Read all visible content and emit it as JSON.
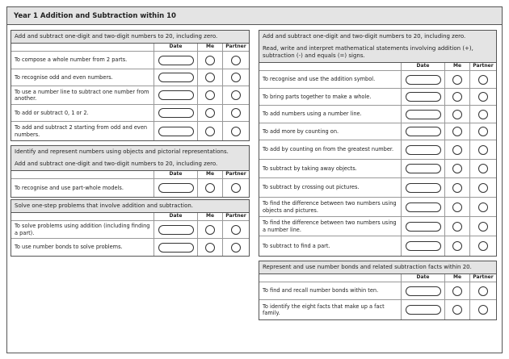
{
  "title": "Year 1 Addition and Subtraction within 10",
  "columns": {
    "date": "Date",
    "me": "Me",
    "partner": "Partner"
  },
  "sections": [
    {
      "headings": [
        "Add and subtract one-digit and two-digit numbers to 20, including zero."
      ],
      "rows": [
        "To compose a whole number from 2 parts.",
        "To recognise odd and even numbers.",
        "To use a number line to subtract one number from another.",
        "To add or subtract 0, 1 or 2.",
        "To add and subtract 2 starting from odd and even numbers."
      ]
    },
    {
      "headings": [
        "Identify and represent numbers using objects and pictorial representations.",
        "Add and subtract one-digit and two-digit numbers to 20, including zero."
      ],
      "rows": [
        "To recognise and use part-whole models."
      ]
    },
    {
      "headings": [
        "Solve one-step problems that involve addition and subtraction."
      ],
      "rows": [
        "To solve problems using addition (including finding a part).",
        "To use number bonds to solve problems."
      ]
    },
    {
      "headings": [
        "Add and subtract one-digit and two-digit numbers to 20, including zero.",
        "Read, write and interpret mathematical statements involving addition (+), subtraction (-) and equals (=) signs."
      ],
      "rows": [
        "To recognise and use the addition symbol.",
        "To bring parts together to make a whole.",
        "To add numbers using a number line.",
        "To add more by counting on.",
        "To add by counting on from the greatest number.",
        "To subtract by taking away objects.",
        "To subtract by crossing out pictures.",
        "To find the difference between two numbers using objects and pictures.",
        "To find the difference between two numbers using a number line.",
        "To subtract to find a part."
      ]
    },
    {
      "headings": [
        "Represent and use number bonds and related subtraction facts within 20."
      ],
      "rows": [
        "To find and recall number bonds within ten.",
        "To identify the eight facts that make up a fact family."
      ]
    }
  ]
}
